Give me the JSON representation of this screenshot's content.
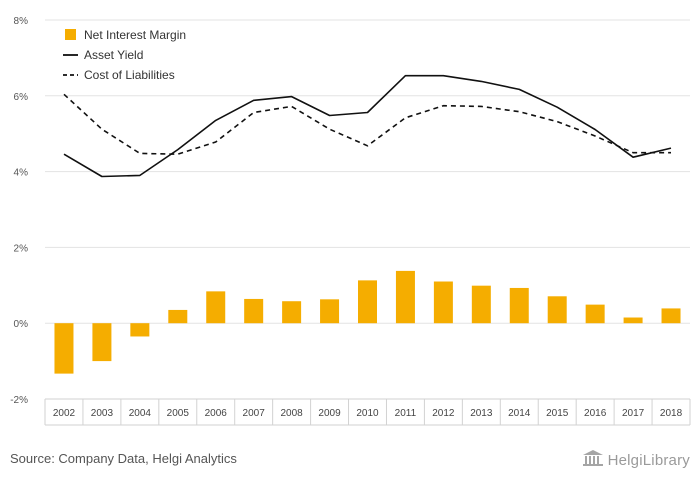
{
  "chart_data": {
    "type": "bar",
    "categories": [
      "2002",
      "2003",
      "2004",
      "2005",
      "2006",
      "2007",
      "2008",
      "2009",
      "2010",
      "2011",
      "2012",
      "2013",
      "2014",
      "2015",
      "2016",
      "2017",
      "2018"
    ],
    "ylim": [
      -2,
      8
    ],
    "y_ticks": [
      -2,
      0,
      2,
      4,
      6,
      8
    ],
    "y_tick_labels": [
      "-2%",
      "0%",
      "2%",
      "4%",
      "6%",
      "8%"
    ],
    "grid": true,
    "legend_position": "top-left",
    "series": [
      {
        "name": "Net Interest Margin",
        "type": "bar",
        "color": "#f5ad00",
        "values": [
          -1.33,
          -1.0,
          -0.35,
          0.35,
          0.84,
          0.64,
          0.58,
          0.63,
          1.13,
          1.38,
          1.1,
          0.99,
          0.93,
          0.71,
          0.49,
          0.15,
          0.39
        ]
      },
      {
        "name": "Asset Yield",
        "type": "line",
        "style": "solid",
        "color": "#111111",
        "values": [
          4.46,
          3.87,
          3.9,
          4.58,
          5.35,
          5.88,
          5.98,
          5.48,
          5.56,
          6.53,
          6.53,
          6.38,
          6.17,
          5.7,
          5.11,
          4.38,
          4.62
        ]
      },
      {
        "name": "Cost of Liabilities",
        "type": "line",
        "style": "dashed",
        "color": "#111111",
        "values": [
          6.04,
          5.12,
          4.48,
          4.46,
          4.78,
          5.56,
          5.72,
          5.12,
          4.68,
          5.42,
          5.74,
          5.72,
          5.58,
          5.32,
          4.94,
          4.5,
          4.5
        ]
      }
    ]
  },
  "footer": {
    "source_text": "Source: Company Data, Helgi Analytics",
    "logo_text": "HelgiLibrary"
  },
  "logo_icon": "library-building-icon"
}
